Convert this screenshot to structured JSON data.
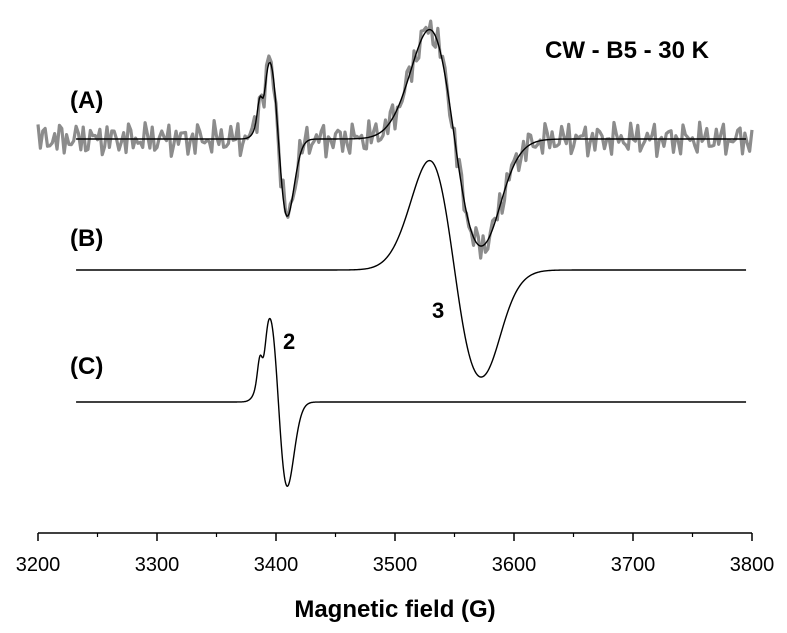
{
  "chart_data": {
    "type": "line",
    "title": "CW - B5 - 30 K",
    "xlabel": "Magnetic field (G)",
    "ylabel": "",
    "xlim": [
      3200,
      3800
    ],
    "xticks": [
      3200,
      3300,
      3400,
      3500,
      3600,
      3700,
      3800
    ],
    "grid": false,
    "traces": [
      {
        "label": "(A)",
        "kind": "experimental + simulation overlay"
      },
      {
        "label": "(B)",
        "kind": "simulation"
      },
      {
        "label": "(C)",
        "kind": "simulation"
      }
    ],
    "peak_labels": [
      {
        "text": "2",
        "x": 3405
      },
      {
        "text": "3",
        "x": 3535
      }
    ],
    "colors": {
      "experimental": "#8c8c8c",
      "simulation": "#000000"
    }
  }
}
